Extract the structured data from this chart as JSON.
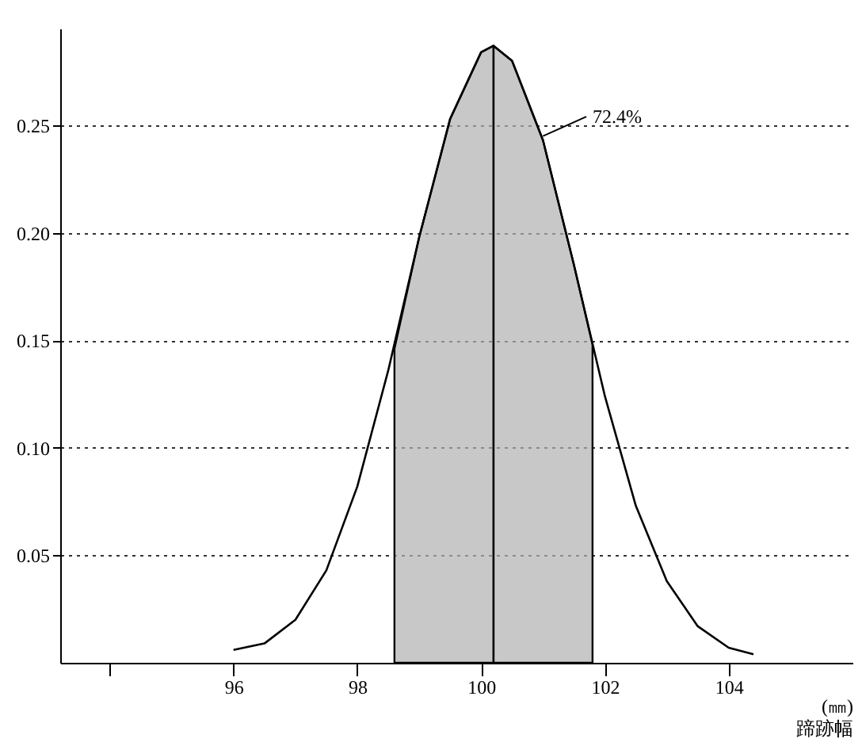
{
  "chart_data": {
    "type": "line",
    "xlabel": "(㎜)\n蹄跡幅",
    "series": [
      {
        "type": "area",
        "color": "#b0b0b0",
        "x": [
          98.6,
          99,
          99.5,
          100,
          100.2,
          100.5,
          101,
          101.5,
          101.8
        ],
        "values": [
          0.146,
          0.198,
          0.253,
          0.284,
          0.287,
          0.28,
          0.243,
          0.185,
          0.148
        ]
      },
      {
        "color": "#000000",
        "x": [
          96,
          96.5,
          97,
          97.5,
          98,
          98.5,
          99,
          99.5,
          100,
          100.2,
          100.5,
          101,
          101.5,
          102,
          102.5,
          103,
          103.5,
          104,
          104.4
        ],
        "values": [
          0.006,
          0.009,
          0.02,
          0.043,
          0.082,
          0.136,
          0.198,
          0.253,
          0.284,
          0.287,
          0.28,
          0.243,
          0.185,
          0.124,
          0.073,
          0.038,
          0.017,
          0.007,
          0.004
        ]
      },
      {
        "type": "line",
        "color": "#000000",
        "x": [
          100.2,
          100.2
        ],
        "values": [
          0,
          0.287
        ]
      }
    ],
    "annotations": [
      {
        "text": "72.4%",
        "x": 101.0,
        "y": 0.245
      }
    ],
    "xlim": [
      93.2,
      106
    ],
    "xticks": [
      {
        "value": 94,
        "label": null
      },
      96,
      98,
      100,
      102,
      104
    ],
    "ylim": [
      0,
      0.295
    ],
    "yticks": [
      0.05,
      {
        "value": 0.1,
        "label": "0.10"
      },
      0.15,
      {
        "value": 0.2,
        "label": "0.20"
      },
      0.25
    ],
    "grid": "y",
    "marker": "none",
    "line_style": "solid"
  }
}
